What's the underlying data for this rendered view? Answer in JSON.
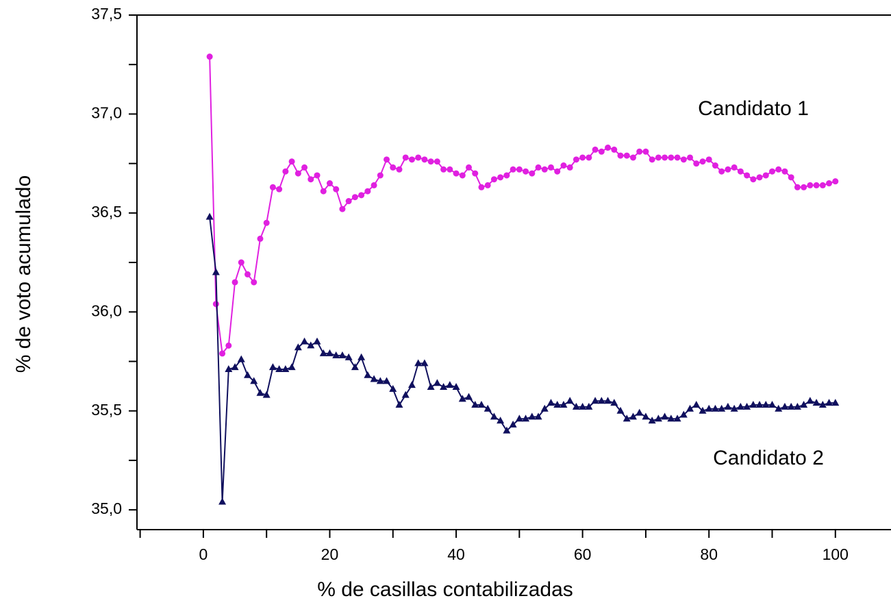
{
  "chart_data": {
    "type": "line",
    "xlabel": "% de casillas contabilizadas",
    "ylabel": "% de voto acumulado",
    "xlim": [
      -10.5,
      108.8
    ],
    "ylim": [
      34.9,
      37.5
    ],
    "xticks": [
      0,
      20,
      40,
      60,
      80,
      100
    ],
    "xminorticks": [
      -10,
      10,
      30,
      50,
      70,
      90
    ],
    "yticks": [
      {
        "value": 35,
        "label": "35,0"
      },
      {
        "value": 35.5,
        "label": "35,5"
      },
      {
        "value": 36,
        "label": "36,0"
      },
      {
        "value": 36.5,
        "label": "36,5"
      },
      {
        "value": 37,
        "label": "37,0"
      },
      {
        "value": 37.5,
        "label": "37,5"
      }
    ],
    "yminorticks": [
      35.25,
      35.75,
      36.25,
      36.75,
      37.25
    ],
    "grid": false,
    "x": [
      1,
      2,
      3,
      4,
      5,
      6,
      7,
      8,
      9,
      10,
      11,
      12,
      13,
      14,
      15,
      16,
      17,
      18,
      19,
      20,
      21,
      22,
      23,
      24,
      25,
      26,
      27,
      28,
      29,
      30,
      31,
      32,
      33,
      34,
      35,
      36,
      37,
      38,
      39,
      40,
      41,
      42,
      43,
      44,
      45,
      46,
      47,
      48,
      49,
      50,
      51,
      52,
      53,
      54,
      55,
      56,
      57,
      58,
      59,
      60,
      61,
      62,
      63,
      64,
      65,
      66,
      67,
      68,
      69,
      70,
      71,
      72,
      73,
      74,
      75,
      76,
      77,
      78,
      79,
      80,
      81,
      82,
      83,
      84,
      85,
      86,
      87,
      88,
      89,
      90,
      91,
      92,
      93,
      94,
      95,
      96,
      97,
      98,
      99,
      100
    ],
    "series": [
      {
        "name": "Candidato 1",
        "color": "#e020e0",
        "marker": "circle",
        "values": [
          37.29,
          36.04,
          35.79,
          35.83,
          36.15,
          36.25,
          36.19,
          36.15,
          36.37,
          36.45,
          36.63,
          36.62,
          36.71,
          36.76,
          36.7,
          36.73,
          36.67,
          36.69,
          36.61,
          36.65,
          36.62,
          36.52,
          36.56,
          36.58,
          36.59,
          36.61,
          36.64,
          36.69,
          36.77,
          36.73,
          36.72,
          36.78,
          36.77,
          36.78,
          36.77,
          36.76,
          36.76,
          36.72,
          36.72,
          36.7,
          36.69,
          36.73,
          36.7,
          36.63,
          36.64,
          36.67,
          36.68,
          36.69,
          36.72,
          36.72,
          36.71,
          36.7,
          36.73,
          36.72,
          36.73,
          36.71,
          36.74,
          36.73,
          36.77,
          36.78,
          36.78,
          36.82,
          36.81,
          36.83,
          36.82,
          36.79,
          36.79,
          36.78,
          36.81,
          36.81,
          36.77,
          36.78,
          36.78,
          36.78,
          36.78,
          36.77,
          36.78,
          36.75,
          36.76,
          36.77,
          36.74,
          36.71,
          36.72,
          36.73,
          36.71,
          36.69,
          36.67,
          36.68,
          36.69,
          36.71,
          36.72,
          36.71,
          36.68,
          36.63,
          36.63,
          36.64,
          36.64,
          36.64,
          36.65,
          36.66
        ]
      },
      {
        "name": "Candidato 2",
        "color": "#10105e",
        "marker": "triangle",
        "values": [
          36.48,
          36.2,
          35.04,
          35.71,
          35.72,
          35.76,
          35.68,
          35.65,
          35.59,
          35.58,
          35.72,
          35.71,
          35.71,
          35.72,
          35.82,
          35.85,
          35.83,
          35.85,
          35.79,
          35.79,
          35.78,
          35.78,
          35.77,
          35.72,
          35.77,
          35.68,
          35.66,
          35.65,
          35.65,
          35.61,
          35.53,
          35.58,
          35.63,
          35.74,
          35.74,
          35.62,
          35.64,
          35.62,
          35.63,
          35.62,
          35.56,
          35.57,
          35.53,
          35.53,
          35.51,
          35.47,
          35.45,
          35.4,
          35.43,
          35.46,
          35.46,
          35.47,
          35.47,
          35.51,
          35.54,
          35.53,
          35.53,
          35.55,
          35.52,
          35.52,
          35.52,
          35.55,
          35.55,
          35.55,
          35.54,
          35.5,
          35.46,
          35.47,
          35.49,
          35.47,
          35.45,
          35.46,
          35.47,
          35.46,
          35.46,
          35.48,
          35.51,
          35.53,
          35.5,
          35.51,
          35.51,
          35.51,
          35.52,
          35.51,
          35.52,
          35.52,
          35.53,
          35.53,
          35.53,
          35.53,
          35.51,
          35.52,
          35.52,
          35.52,
          35.53,
          35.55,
          35.54,
          35.53,
          35.54,
          35.54
        ]
      }
    ]
  }
}
